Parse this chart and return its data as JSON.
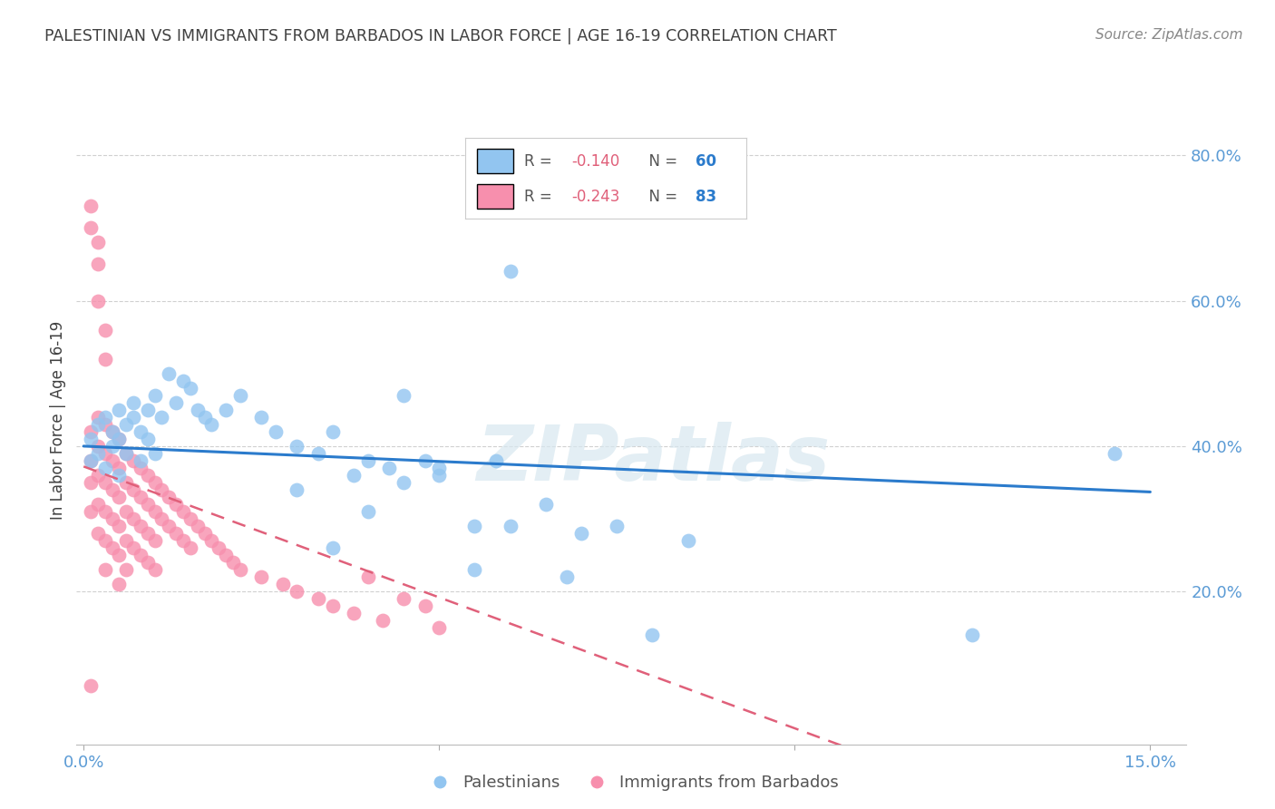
{
  "title": "PALESTINIAN VS IMMIGRANTS FROM BARBADOS IN LABOR FORCE | AGE 16-19 CORRELATION CHART",
  "source": "Source: ZipAtlas.com",
  "ylabel": "In Labor Force | Age 16-19",
  "y_ticks_right": [
    0.2,
    0.4,
    0.6,
    0.8
  ],
  "y_tick_labels_right": [
    "20.0%",
    "40.0%",
    "60.0%",
    "80.0%"
  ],
  "xlim": [
    -0.001,
    0.155
  ],
  "ylim": [
    -0.01,
    0.88
  ],
  "blue_color": "#92C5F0",
  "pink_color": "#F78FAD",
  "blue_line_color": "#2B7BCC",
  "pink_line_color": "#E0607A",
  "legend_blue_r": "R = -0.140",
  "legend_blue_n": "N = 60",
  "legend_pink_r": "R = -0.243",
  "legend_pink_n": "N = 83",
  "legend_series1": "Palestinians",
  "legend_series2": "Immigrants from Barbados",
  "blue_intercept": 0.4,
  "blue_slope": -0.42,
  "pink_intercept": 0.372,
  "pink_slope": -3.6,
  "blue_scatter_x": [
    0.001,
    0.001,
    0.002,
    0.002,
    0.003,
    0.003,
    0.004,
    0.004,
    0.005,
    0.005,
    0.005,
    0.006,
    0.006,
    0.007,
    0.007,
    0.008,
    0.008,
    0.009,
    0.009,
    0.01,
    0.01,
    0.011,
    0.012,
    0.013,
    0.014,
    0.015,
    0.016,
    0.017,
    0.018,
    0.02,
    0.022,
    0.025,
    0.027,
    0.03,
    0.033,
    0.035,
    0.038,
    0.04,
    0.043,
    0.045,
    0.048,
    0.05,
    0.055,
    0.058,
    0.06,
    0.065,
    0.07,
    0.075,
    0.08,
    0.085,
    0.03,
    0.035,
    0.04,
    0.045,
    0.05,
    0.055,
    0.06,
    0.068,
    0.125,
    0.145
  ],
  "blue_scatter_y": [
    0.41,
    0.38,
    0.43,
    0.39,
    0.44,
    0.37,
    0.42,
    0.4,
    0.45,
    0.41,
    0.36,
    0.43,
    0.39,
    0.44,
    0.46,
    0.42,
    0.38,
    0.45,
    0.41,
    0.47,
    0.39,
    0.44,
    0.5,
    0.46,
    0.49,
    0.48,
    0.45,
    0.44,
    0.43,
    0.45,
    0.47,
    0.44,
    0.42,
    0.4,
    0.39,
    0.42,
    0.36,
    0.38,
    0.37,
    0.35,
    0.38,
    0.36,
    0.29,
    0.38,
    0.29,
    0.32,
    0.28,
    0.29,
    0.14,
    0.27,
    0.34,
    0.26,
    0.31,
    0.47,
    0.37,
    0.23,
    0.64,
    0.22,
    0.14,
    0.39
  ],
  "pink_scatter_x": [
    0.001,
    0.001,
    0.001,
    0.001,
    0.001,
    0.002,
    0.002,
    0.002,
    0.002,
    0.002,
    0.003,
    0.003,
    0.003,
    0.003,
    0.003,
    0.003,
    0.004,
    0.004,
    0.004,
    0.004,
    0.004,
    0.005,
    0.005,
    0.005,
    0.005,
    0.005,
    0.005,
    0.006,
    0.006,
    0.006,
    0.006,
    0.006,
    0.007,
    0.007,
    0.007,
    0.007,
    0.008,
    0.008,
    0.008,
    0.008,
    0.009,
    0.009,
    0.009,
    0.009,
    0.01,
    0.01,
    0.01,
    0.01,
    0.011,
    0.011,
    0.012,
    0.012,
    0.013,
    0.013,
    0.014,
    0.014,
    0.015,
    0.015,
    0.016,
    0.017,
    0.018,
    0.019,
    0.02,
    0.021,
    0.022,
    0.025,
    0.028,
    0.03,
    0.033,
    0.035,
    0.038,
    0.04,
    0.042,
    0.045,
    0.048,
    0.05,
    0.001,
    0.001,
    0.002,
    0.002,
    0.002,
    0.003,
    0.003
  ],
  "pink_scatter_y": [
    0.42,
    0.38,
    0.35,
    0.31,
    0.07,
    0.44,
    0.4,
    0.36,
    0.32,
    0.28,
    0.43,
    0.39,
    0.35,
    0.31,
    0.27,
    0.23,
    0.42,
    0.38,
    0.34,
    0.3,
    0.26,
    0.41,
    0.37,
    0.33,
    0.29,
    0.25,
    0.21,
    0.39,
    0.35,
    0.31,
    0.27,
    0.23,
    0.38,
    0.34,
    0.3,
    0.26,
    0.37,
    0.33,
    0.29,
    0.25,
    0.36,
    0.32,
    0.28,
    0.24,
    0.35,
    0.31,
    0.27,
    0.23,
    0.34,
    0.3,
    0.33,
    0.29,
    0.32,
    0.28,
    0.31,
    0.27,
    0.3,
    0.26,
    0.29,
    0.28,
    0.27,
    0.26,
    0.25,
    0.24,
    0.23,
    0.22,
    0.21,
    0.2,
    0.19,
    0.18,
    0.17,
    0.22,
    0.16,
    0.19,
    0.18,
    0.15,
    0.7,
    0.73,
    0.68,
    0.65,
    0.6,
    0.56,
    0.52
  ],
  "watermark_text": "ZIPatlas",
  "background_color": "#ffffff",
  "grid_color": "#d0d0d0",
  "title_color": "#404040",
  "source_color": "#888888",
  "axis_color": "#5B9BD5",
  "ylabel_color": "#404040"
}
